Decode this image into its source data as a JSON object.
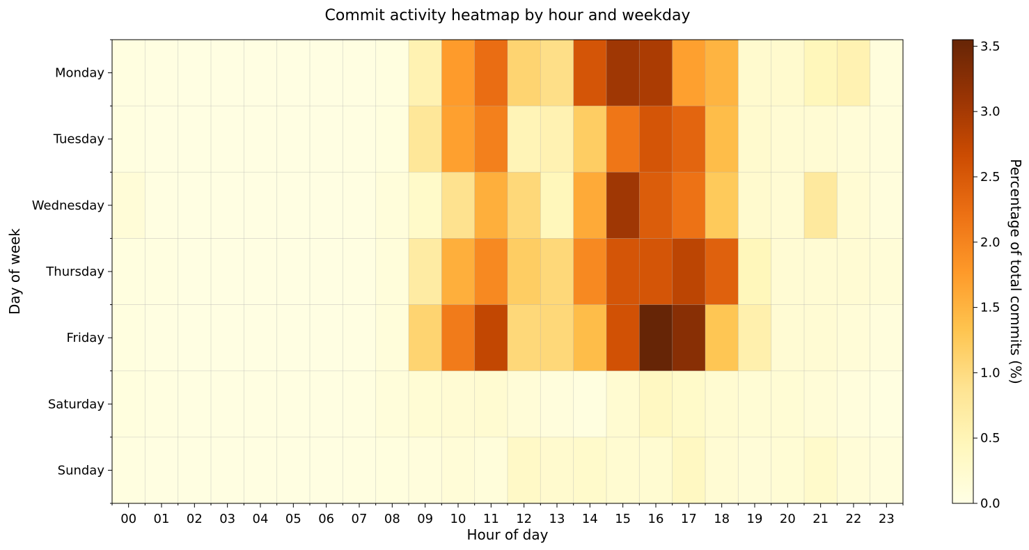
{
  "chart_data": {
    "type": "heatmap",
    "title": "Commit activity heatmap by hour and weekday",
    "xlabel": "Hour of day",
    "ylabel": "Day of week",
    "x_categories": [
      "00",
      "01",
      "02",
      "03",
      "04",
      "05",
      "06",
      "07",
      "08",
      "09",
      "10",
      "11",
      "12",
      "13",
      "14",
      "15",
      "16",
      "17",
      "18",
      "19",
      "20",
      "21",
      "22",
      "23"
    ],
    "y_categories": [
      "Monday",
      "Tuesday",
      "Wednesday",
      "Thursday",
      "Friday",
      "Saturday",
      "Sunday"
    ],
    "colorbar": {
      "label": "Percentage of total commits (%)",
      "range": [
        0.0,
        3.55
      ],
      "ticks": [
        "0.0",
        "0.5",
        "1.0",
        "1.5",
        "2.0",
        "2.5",
        "3.0",
        "3.5"
      ],
      "colormap": "YlOrBr",
      "stops": [
        "#ffffe5",
        "#fff7bc",
        "#fee391",
        "#fec44f",
        "#fe9929",
        "#ec7014",
        "#cc4c02",
        "#993404",
        "#662506"
      ]
    },
    "grid": true,
    "values": [
      [
        0.05,
        0.04,
        0.03,
        0.03,
        0.03,
        0.03,
        0.03,
        0.04,
        0.06,
        0.55,
        1.75,
        2.25,
        1.1,
        0.95,
        2.55,
        3.05,
        2.95,
        1.7,
        1.5,
        0.25,
        0.25,
        0.45,
        0.55,
        0.1
      ],
      [
        0.05,
        0.03,
        0.03,
        0.03,
        0.03,
        0.03,
        0.03,
        0.04,
        0.08,
        0.8,
        1.7,
        2.05,
        0.5,
        0.55,
        1.2,
        2.15,
        2.55,
        2.35,
        1.4,
        0.25,
        0.2,
        0.2,
        0.15,
        0.1
      ],
      [
        0.15,
        0.04,
        0.03,
        0.03,
        0.03,
        0.03,
        0.03,
        0.04,
        0.12,
        0.3,
        0.9,
        1.55,
        1.05,
        0.45,
        1.6,
        3.05,
        2.45,
        2.2,
        1.25,
        0.25,
        0.2,
        0.75,
        0.2,
        0.1
      ],
      [
        0.06,
        0.05,
        0.03,
        0.03,
        0.03,
        0.03,
        0.03,
        0.04,
        0.12,
        0.7,
        1.55,
        1.95,
        1.2,
        1.05,
        1.95,
        2.55,
        2.55,
        2.8,
        2.4,
        0.45,
        0.2,
        0.2,
        0.2,
        0.15
      ],
      [
        0.06,
        0.04,
        0.03,
        0.03,
        0.03,
        0.03,
        0.03,
        0.04,
        0.12,
        1.1,
        2.1,
        2.75,
        1.05,
        1.05,
        1.4,
        2.6,
        3.55,
        3.25,
        1.3,
        0.6,
        0.2,
        0.2,
        0.15,
        0.1
      ],
      [
        0.08,
        0.05,
        0.04,
        0.04,
        0.04,
        0.04,
        0.04,
        0.05,
        0.12,
        0.18,
        0.2,
        0.22,
        0.15,
        0.1,
        0.06,
        0.22,
        0.38,
        0.3,
        0.22,
        0.18,
        0.18,
        0.15,
        0.1,
        0.05
      ],
      [
        0.05,
        0.04,
        0.04,
        0.04,
        0.04,
        0.04,
        0.04,
        0.05,
        0.08,
        0.1,
        0.15,
        0.12,
        0.32,
        0.25,
        0.28,
        0.22,
        0.22,
        0.38,
        0.2,
        0.15,
        0.18,
        0.28,
        0.15,
        0.1
      ]
    ]
  }
}
